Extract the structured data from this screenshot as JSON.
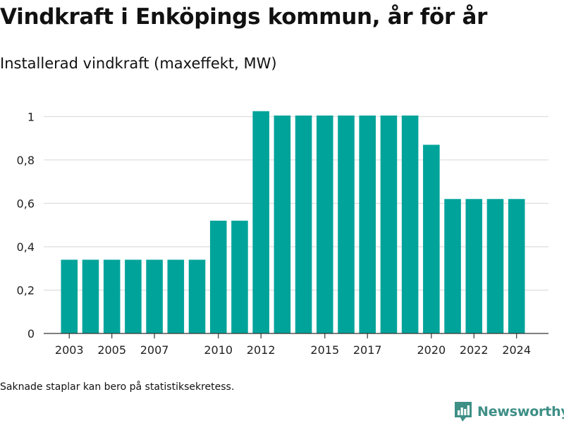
{
  "title": "Vindkraft i Enköpings kommun, år för år",
  "subtitle": "Installerad vindkraft (maxeffekt, MW)",
  "footnote": "Saknade staplar kan bero på statistiksekretess.",
  "brand": {
    "name": "Newsworthy",
    "icon": "bar-chart-logo-icon",
    "color": "#3e8f86"
  },
  "chart_data": {
    "type": "bar",
    "title": "",
    "xlabel": "",
    "ylabel": "",
    "ylim": [
      0,
      1.05
    ],
    "grid": true,
    "legend": "none",
    "bar_color": "#00a39a",
    "y_ticks": [
      {
        "value": 0,
        "label": "0"
      },
      {
        "value": 0.2,
        "label": "0,2"
      },
      {
        "value": 0.4,
        "label": "0,4"
      },
      {
        "value": 0.6,
        "label": "0,6"
      },
      {
        "value": 0.8,
        "label": "0,8"
      },
      {
        "value": 1,
        "label": "1"
      }
    ],
    "x_ticks": [
      "2003",
      "2005",
      "2007",
      "2010",
      "2012",
      "2015",
      "2017",
      "2020",
      "2022",
      "2024"
    ],
    "x_range": [
      2001.8,
      2025.5
    ],
    "categories": [
      "2003",
      "2004",
      "2005",
      "2006",
      "2007",
      "2008",
      "2009",
      "2010",
      "2011",
      "2012",
      "2013",
      "2014",
      "2015",
      "2016",
      "2017",
      "2018",
      "2019",
      "2020",
      "2021",
      "2022",
      "2023",
      "2024"
    ],
    "values": [
      0.34,
      0.34,
      0.34,
      0.34,
      0.34,
      0.34,
      0.34,
      0.52,
      0.52,
      1.025,
      1.005,
      1.005,
      1.005,
      1.005,
      1.005,
      1.005,
      1.005,
      0.87,
      0.62,
      0.62,
      0.62,
      0.62
    ]
  }
}
